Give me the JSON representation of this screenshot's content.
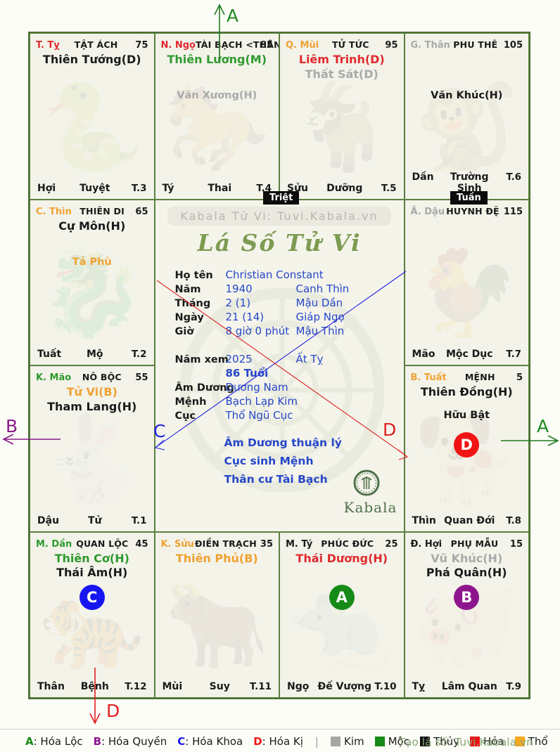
{
  "markers": {
    "triet": "Triệt",
    "tuan": "Tuần"
  },
  "arrows": {
    "top": "A",
    "right": "A",
    "left": "B",
    "bottom": "D",
    "diag_blue": "C",
    "diag_red": "D"
  },
  "center": {
    "brand": "Kabala Tử Vi: Tuvi.Kabala.vn",
    "title": "Lá Số Tử Vi",
    "fields": [
      {
        "label": "Họ tên",
        "value": "Christian Constant",
        "extra": "",
        "gap": false,
        "bold": false
      },
      {
        "label": "Năm",
        "value": "1940",
        "extra": "Canh Thìn",
        "gap": false,
        "bold": false
      },
      {
        "label": "Tháng",
        "value": "2 (1)",
        "extra": "Mậu Dần",
        "gap": false,
        "bold": false
      },
      {
        "label": "Ngày",
        "value": "21 (14)",
        "extra": "Giáp Ngọ",
        "gap": false,
        "bold": false
      },
      {
        "label": "Giờ",
        "value": "8 giờ 0 phút",
        "extra": "Mậu Thìn",
        "gap": false,
        "bold": false
      },
      {
        "label": "Năm xem",
        "value": "2025",
        "extra": "Ất Tỵ",
        "gap": true,
        "bold": false
      },
      {
        "label": "",
        "value": "86 Tuổi",
        "extra": "",
        "gap": false,
        "bold": true
      },
      {
        "label": "Âm Dương",
        "value": "Dương Nam",
        "extra": "",
        "gap": false,
        "bold": false
      },
      {
        "label": "Mệnh",
        "value": "Bạch Lạp Kim",
        "extra": "",
        "gap": false,
        "bold": false
      },
      {
        "label": "Cục",
        "value": "Thổ Ngũ Cục",
        "extra": "",
        "gap": false,
        "bold": false
      }
    ],
    "notes": [
      "Âm Dương thuận lý",
      "Cục sinh Mệnh",
      "Thân cư Tài Bạch"
    ],
    "logo_text": "Kabala"
  },
  "cells": [
    {
      "stem": "T. Tỵ",
      "stem_color": "#e02a2e",
      "palace": "TẬT ÁCH",
      "number": "75",
      "mains": [
        {
          "text": "Thiên Tướng(D)",
          "color": "#1a1a1a"
        }
      ],
      "minors": [],
      "badge": null,
      "branch": "Hợi",
      "stage": "Tuyệt",
      "cycle": "T.3",
      "zodiac": "🐍"
    },
    {
      "stem": "N. Ngọ",
      "stem_color": "#e02a2e",
      "palace": "TÀI BẠCH <THÂN>",
      "number": "85",
      "mains": [
        {
          "text": "Thiên Lương(M)",
          "color": "#2e9a2e"
        }
      ],
      "minors": [
        {
          "text": "Văn Xương(H)",
          "color": "#a9a9a9"
        }
      ],
      "badge": null,
      "branch": "Tý",
      "stage": "Thai",
      "cycle": "T.4",
      "zodiac": "🐎"
    },
    {
      "stem": "Q. Mùi",
      "stem_color": "#f0a132",
      "palace": "TỬ TỨC",
      "number": "95",
      "mains": [
        {
          "text": "Liêm Trinh(D)",
          "color": "#e02a2e"
        },
        {
          "text": "Thất Sát(D)",
          "color": "#a9a9a9"
        }
      ],
      "minors": [],
      "badge": null,
      "branch": "Sửu",
      "stage": "Dưỡng",
      "cycle": "T.5",
      "zodiac": "🐐"
    },
    {
      "stem": "G. Thân",
      "stem_color": "#a9a9a9",
      "palace": "PHU THÊ",
      "number": "105",
      "mains": [],
      "minors": [
        {
          "text": "Văn Khúc(H)",
          "color": "#1a1a1a"
        }
      ],
      "badge": null,
      "branch": "Dần",
      "stage": "Trường Sinh",
      "cycle": "T.6",
      "zodiac": "🐒"
    },
    {
      "stem": "C. Thìn",
      "stem_color": "#f0a132",
      "palace": "THIÊN DI",
      "number": "65",
      "mains": [
        {
          "text": "Cự Môn(H)",
          "color": "#1a1a1a"
        }
      ],
      "minors": [
        {
          "text": "Tả Phù",
          "color": "#f0a132"
        }
      ],
      "badge": null,
      "branch": "Tuất",
      "stage": "Mộ",
      "cycle": "T.2",
      "zodiac": "🐉"
    },
    {
      "stem": "Ã. Dậu",
      "stem_color": "#a9a9a9",
      "palace": "HUYNH ĐỆ",
      "number": "115",
      "mains": [],
      "minors": [],
      "badge": null,
      "branch": "Mão",
      "stage": "Mộc Dục",
      "cycle": "T.7",
      "zodiac": "🐓"
    },
    {
      "stem": "K. Mão",
      "stem_color": "#2e9a2e",
      "palace": "NÔ BỘC",
      "number": "55",
      "mains": [
        {
          "text": "Tử Vi(B)",
          "color": "#f0a132"
        },
        {
          "text": "Tham Lang(H)",
          "color": "#1a1a1a"
        }
      ],
      "minors": [],
      "badge": null,
      "branch": "Dậu",
      "stage": "Tử",
      "cycle": "T.1",
      "zodiac": "🐇"
    },
    {
      "stem": "B. Tuất",
      "stem_color": "#f0a132",
      "palace": "MỆNH",
      "number": "5",
      "mains": [
        {
          "text": "Thiên Đồng(H)",
          "color": "#1a1a1a"
        }
      ],
      "minors": [
        {
          "text": "Hữu Bật",
          "color": "#1a1a1a"
        }
      ],
      "badge": {
        "letter": "D",
        "color": "#f01414"
      },
      "branch": "Thìn",
      "stage": "Quan Đới",
      "cycle": "T.8",
      "zodiac": "🐕"
    },
    {
      "stem": "M. Dần",
      "stem_color": "#2e9a2e",
      "palace": "QUAN LỘC",
      "number": "45",
      "mains": [
        {
          "text": "Thiên Cơ(H)",
          "color": "#2e9a2e"
        },
        {
          "text": "Thái Âm(H)",
          "color": "#1a1a1a"
        }
      ],
      "minors": [],
      "badge": {
        "letter": "C",
        "color": "#1616f0"
      },
      "branch": "Thân",
      "stage": "Bệnh",
      "cycle": "T.12",
      "zodiac": "🐅"
    },
    {
      "stem": "K. Sửu",
      "stem_color": "#f0a132",
      "palace": "ĐIỀN TRẠCH",
      "number": "35",
      "mains": [
        {
          "text": "Thiên Phủ(B)",
          "color": "#f0a132"
        }
      ],
      "minors": [],
      "badge": null,
      "branch": "Mùi",
      "stage": "Suy",
      "cycle": "T.11",
      "zodiac": "🐂"
    },
    {
      "stem": "M. Tý",
      "stem_color": "#1a1a1a",
      "palace": "PHÚC ĐỨC",
      "number": "25",
      "mains": [
        {
          "text": "Thái Dương(H)",
          "color": "#e02a2e"
        }
      ],
      "minors": [],
      "badge": {
        "letter": "A",
        "color": "#168a16"
      },
      "branch": "Ngọ",
      "stage": "Đế Vượng",
      "cycle": "T.10",
      "zodiac": "🐀"
    },
    {
      "stem": "Đ. Hợi",
      "stem_color": "#1a1a1a",
      "palace": "PHỤ MẪU",
      "number": "15",
      "mains": [
        {
          "text": "Vũ Khúc(H)",
          "color": "#a9a9a9"
        },
        {
          "text": "Phá Quân(H)",
          "color": "#1a1a1a"
        }
      ],
      "minors": [],
      "badge": {
        "letter": "B",
        "color": "#8d168d"
      },
      "branch": "Tỵ",
      "stage": "Lâm Quan",
      "cycle": "T.9",
      "zodiac": "🐖"
    }
  ],
  "legend": {
    "hoa": [
      {
        "letter": "A",
        "label": "Hóa Lộc",
        "color": "#168a16"
      },
      {
        "letter": "B",
        "label": "Hóa Quyền",
        "color": "#8d168d"
      },
      {
        "letter": "C",
        "label": "Hóa Khoa",
        "color": "#1616f0"
      },
      {
        "letter": "D",
        "label": "Hóa Kị",
        "color": "#f01414"
      }
    ],
    "elements": [
      {
        "name": "Kim",
        "color": "#a6a6a6"
      },
      {
        "name": "Mộc",
        "color": "#168a16"
      },
      {
        "name": "Thủy",
        "color": "#121212"
      },
      {
        "name": "Hỏa",
        "color": "#e81414"
      },
      {
        "name": "Thổ",
        "color": "#f5a81e"
      }
    ],
    "credit": "Tạo lá số: Tuvi.Kabala.vn"
  }
}
